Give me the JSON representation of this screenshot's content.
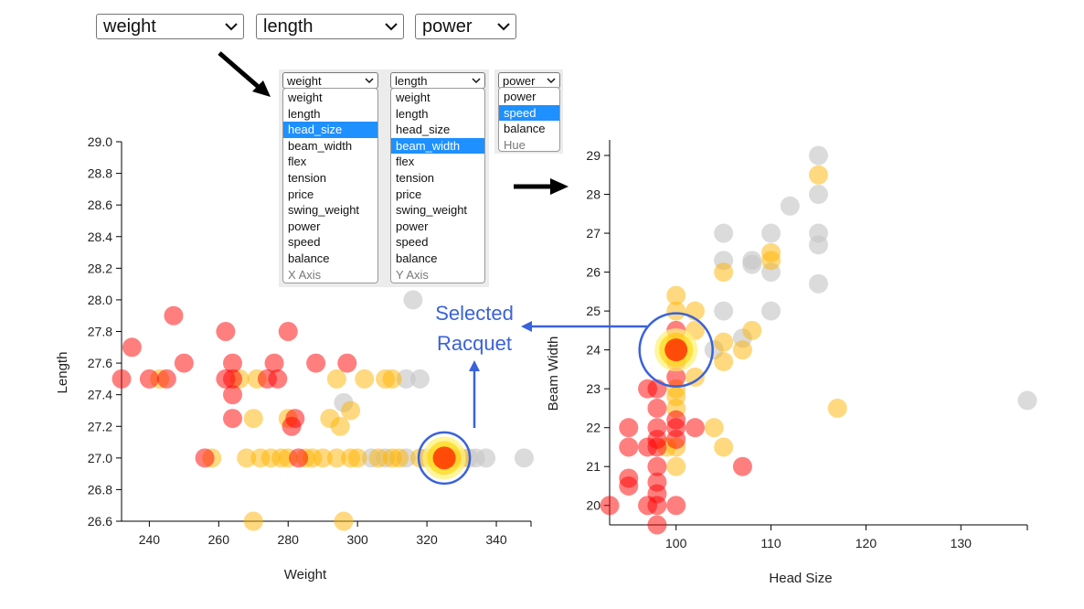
{
  "controls": {
    "x_select": {
      "value": "weight"
    },
    "y_select": {
      "value": "length"
    },
    "color_select": {
      "value": "power"
    }
  },
  "dropdowns": {
    "x": {
      "value": "weight",
      "options": [
        "weight",
        "length",
        "head_size",
        "beam_width",
        "flex",
        "tension",
        "price",
        "swing_weight",
        "power",
        "speed",
        "balance"
      ],
      "highlighted": "head_size",
      "placeholder": "X Axis"
    },
    "y": {
      "value": "length",
      "options": [
        "weight",
        "length",
        "head_size",
        "beam_width",
        "flex",
        "tension",
        "price",
        "swing_weight",
        "power",
        "speed",
        "balance"
      ],
      "highlighted": "beam_width",
      "placeholder": "Y Axis"
    },
    "color": {
      "value": "power",
      "options": [
        "power",
        "speed",
        "balance"
      ],
      "highlighted": "speed",
      "placeholder": "Hue"
    }
  },
  "annotation": {
    "line1": "Selected",
    "line2": "Racquet",
    "color": "#3a62d9"
  },
  "colors": {
    "low": "#c8c8c8",
    "mid": "#ffb300",
    "high": "#ff0000"
  },
  "chart_data": [
    {
      "type": "scatter",
      "xlabel": "Weight",
      "ylabel": "Length",
      "xlim": [
        232,
        350
      ],
      "ylim": [
        26.6,
        29.0
      ],
      "xticks": [
        240,
        260,
        280,
        300,
        320,
        340
      ],
      "yticks": [
        "26.6",
        "26.8",
        "27.0",
        "27.2",
        "27.4",
        "27.6",
        "27.8",
        "28.0",
        "28.2",
        "28.4",
        "28.6",
        "28.8",
        "29.0"
      ],
      "selected": {
        "x": 325,
        "y": 27.0
      },
      "points": [
        {
          "x": 232,
          "y": 27.5,
          "c": "high"
        },
        {
          "x": 235,
          "y": 27.7,
          "c": "high"
        },
        {
          "x": 240,
          "y": 27.5,
          "c": "high"
        },
        {
          "x": 243,
          "y": 27.5,
          "c": "mid"
        },
        {
          "x": 245,
          "y": 27.5,
          "c": "high"
        },
        {
          "x": 247,
          "y": 27.9,
          "c": "high"
        },
        {
          "x": 250,
          "y": 27.6,
          "c": "high"
        },
        {
          "x": 256,
          "y": 27.0,
          "c": "high"
        },
        {
          "x": 258,
          "y": 27.0,
          "c": "mid"
        },
        {
          "x": 262,
          "y": 27.8,
          "c": "high"
        },
        {
          "x": 262,
          "y": 27.5,
          "c": "high"
        },
        {
          "x": 264,
          "y": 27.6,
          "c": "high"
        },
        {
          "x": 264,
          "y": 27.5,
          "c": "high"
        },
        {
          "x": 264,
          "y": 27.4,
          "c": "high"
        },
        {
          "x": 264,
          "y": 27.25,
          "c": "high"
        },
        {
          "x": 266,
          "y": 27.5,
          "c": "mid"
        },
        {
          "x": 268,
          "y": 27.0,
          "c": "mid"
        },
        {
          "x": 270,
          "y": 27.25,
          "c": "mid"
        },
        {
          "x": 270,
          "y": 26.6,
          "c": "mid"
        },
        {
          "x": 271,
          "y": 27.5,
          "c": "mid"
        },
        {
          "x": 272,
          "y": 27.0,
          "c": "mid"
        },
        {
          "x": 274,
          "y": 27.5,
          "c": "high"
        },
        {
          "x": 275,
          "y": 27.0,
          "c": "mid"
        },
        {
          "x": 276,
          "y": 27.6,
          "c": "high"
        },
        {
          "x": 277,
          "y": 27.5,
          "c": "high"
        },
        {
          "x": 278,
          "y": 27.0,
          "c": "mid"
        },
        {
          "x": 280,
          "y": 27.8,
          "c": "high"
        },
        {
          "x": 280,
          "y": 27.25,
          "c": "mid"
        },
        {
          "x": 280,
          "y": 27.0,
          "c": "mid"
        },
        {
          "x": 281,
          "y": 27.2,
          "c": "high"
        },
        {
          "x": 282,
          "y": 27.25,
          "c": "high"
        },
        {
          "x": 283,
          "y": 27.0,
          "c": "high"
        },
        {
          "x": 285,
          "y": 27.0,
          "c": "mid"
        },
        {
          "x": 287,
          "y": 27.0,
          "c": "mid"
        },
        {
          "x": 288,
          "y": 27.6,
          "c": "high"
        },
        {
          "x": 290,
          "y": 27.0,
          "c": "mid"
        },
        {
          "x": 292,
          "y": 27.25,
          "c": "mid"
        },
        {
          "x": 294,
          "y": 27.0,
          "c": "mid"
        },
        {
          "x": 294,
          "y": 27.5,
          "c": "mid"
        },
        {
          "x": 295,
          "y": 27.2,
          "c": "mid"
        },
        {
          "x": 296,
          "y": 26.6,
          "c": "mid"
        },
        {
          "x": 296,
          "y": 27.35,
          "c": "low"
        },
        {
          "x": 297,
          "y": 27.6,
          "c": "high"
        },
        {
          "x": 298,
          "y": 27.0,
          "c": "mid"
        },
        {
          "x": 298,
          "y": 27.3,
          "c": "mid"
        },
        {
          "x": 300,
          "y": 27.0,
          "c": "mid"
        },
        {
          "x": 302,
          "y": 27.5,
          "c": "mid"
        },
        {
          "x": 304,
          "y": 27.0,
          "c": "low"
        },
        {
          "x": 306,
          "y": 27.0,
          "c": "mid"
        },
        {
          "x": 308,
          "y": 27.5,
          "c": "mid"
        },
        {
          "x": 308,
          "y": 27.0,
          "c": "low"
        },
        {
          "x": 310,
          "y": 27.5,
          "c": "mid"
        },
        {
          "x": 310,
          "y": 27.0,
          "c": "mid"
        },
        {
          "x": 312,
          "y": 27.0,
          "c": "mid"
        },
        {
          "x": 314,
          "y": 27.5,
          "c": "low"
        },
        {
          "x": 314,
          "y": 27.0,
          "c": "low"
        },
        {
          "x": 316,
          "y": 28.0,
          "c": "low"
        },
        {
          "x": 318,
          "y": 27.5,
          "c": "low"
        },
        {
          "x": 318,
          "y": 27.0,
          "c": "mid"
        },
        {
          "x": 320,
          "y": 27.0,
          "c": "low"
        },
        {
          "x": 322,
          "y": 27.0,
          "c": "mid"
        },
        {
          "x": 324,
          "y": 27.0,
          "c": "low"
        },
        {
          "x": 325,
          "y": 27.0,
          "c": "high"
        },
        {
          "x": 327,
          "y": 27.0,
          "c": "high"
        },
        {
          "x": 330,
          "y": 27.0,
          "c": "mid"
        },
        {
          "x": 332,
          "y": 27.0,
          "c": "low"
        },
        {
          "x": 334,
          "y": 27.0,
          "c": "low"
        },
        {
          "x": 337,
          "y": 27.0,
          "c": "low"
        },
        {
          "x": 348,
          "y": 27.0,
          "c": "low"
        }
      ]
    },
    {
      "type": "scatter",
      "xlabel": "Head Size",
      "ylabel": "Beam Width",
      "xlim": [
        93,
        137
      ],
      "ylim": [
        19.5,
        29.4
      ],
      "xticks": [
        100,
        110,
        120,
        130
      ],
      "yticks": [
        20,
        21,
        22,
        23,
        24,
        25,
        26,
        27,
        28,
        29
      ],
      "selected": {
        "x": 100,
        "y": 24
      },
      "points": [
        {
          "x": 93,
          "y": 20.0,
          "c": "high"
        },
        {
          "x": 95,
          "y": 22.0,
          "c": "high"
        },
        {
          "x": 95,
          "y": 21.5,
          "c": "high"
        },
        {
          "x": 95,
          "y": 20.7,
          "c": "high"
        },
        {
          "x": 95,
          "y": 20.5,
          "c": "high"
        },
        {
          "x": 97,
          "y": 23.0,
          "c": "high"
        },
        {
          "x": 97,
          "y": 21.5,
          "c": "high"
        },
        {
          "x": 97,
          "y": 20.0,
          "c": "high"
        },
        {
          "x": 98,
          "y": 23.0,
          "c": "high"
        },
        {
          "x": 98,
          "y": 22.5,
          "c": "high"
        },
        {
          "x": 98,
          "y": 22.0,
          "c": "high"
        },
        {
          "x": 98,
          "y": 21.7,
          "c": "high"
        },
        {
          "x": 98,
          "y": 21.5,
          "c": "high"
        },
        {
          "x": 98,
          "y": 21.0,
          "c": "high"
        },
        {
          "x": 98,
          "y": 20.6,
          "c": "high"
        },
        {
          "x": 98,
          "y": 20.3,
          "c": "high"
        },
        {
          "x": 98,
          "y": 20.0,
          "c": "high"
        },
        {
          "x": 98,
          "y": 19.5,
          "c": "high"
        },
        {
          "x": 99,
          "y": 21.5,
          "c": "mid"
        },
        {
          "x": 100,
          "y": 25.0,
          "c": "mid"
        },
        {
          "x": 100,
          "y": 24.5,
          "c": "high"
        },
        {
          "x": 100,
          "y": 24.2,
          "c": "high"
        },
        {
          "x": 100,
          "y": 24.0,
          "c": "high"
        },
        {
          "x": 100,
          "y": 23.7,
          "c": "high"
        },
        {
          "x": 100,
          "y": 23.3,
          "c": "high"
        },
        {
          "x": 100,
          "y": 23.0,
          "c": "mid"
        },
        {
          "x": 100,
          "y": 22.8,
          "c": "mid"
        },
        {
          "x": 100,
          "y": 22.5,
          "c": "mid"
        },
        {
          "x": 100,
          "y": 22.2,
          "c": "high"
        },
        {
          "x": 100,
          "y": 22.0,
          "c": "high"
        },
        {
          "x": 100,
          "y": 21.7,
          "c": "high"
        },
        {
          "x": 100,
          "y": 21.5,
          "c": "mid"
        },
        {
          "x": 100,
          "y": 21.0,
          "c": "mid"
        },
        {
          "x": 100,
          "y": 20.0,
          "c": "high"
        },
        {
          "x": 100,
          "y": 25.4,
          "c": "mid"
        },
        {
          "x": 102,
          "y": 25.0,
          "c": "mid"
        },
        {
          "x": 102,
          "y": 24.5,
          "c": "mid"
        },
        {
          "x": 102,
          "y": 23.3,
          "c": "mid"
        },
        {
          "x": 102,
          "y": 22.0,
          "c": "high"
        },
        {
          "x": 104,
          "y": 24.0,
          "c": "low"
        },
        {
          "x": 104,
          "y": 22.0,
          "c": "mid"
        },
        {
          "x": 105,
          "y": 27.0,
          "c": "low"
        },
        {
          "x": 105,
          "y": 26.3,
          "c": "low"
        },
        {
          "x": 105,
          "y": 26.0,
          "c": "mid"
        },
        {
          "x": 105,
          "y": 25.0,
          "c": "low"
        },
        {
          "x": 105,
          "y": 24.2,
          "c": "mid"
        },
        {
          "x": 105,
          "y": 23.7,
          "c": "mid"
        },
        {
          "x": 105,
          "y": 21.5,
          "c": "mid"
        },
        {
          "x": 107,
          "y": 24.3,
          "c": "low"
        },
        {
          "x": 107,
          "y": 24.0,
          "c": "mid"
        },
        {
          "x": 107,
          "y": 21.0,
          "c": "high"
        },
        {
          "x": 108,
          "y": 26.3,
          "c": "low"
        },
        {
          "x": 108,
          "y": 26.2,
          "c": "low"
        },
        {
          "x": 108,
          "y": 24.5,
          "c": "mid"
        },
        {
          "x": 110,
          "y": 27.0,
          "c": "low"
        },
        {
          "x": 110,
          "y": 26.5,
          "c": "mid"
        },
        {
          "x": 110,
          "y": 26.3,
          "c": "mid"
        },
        {
          "x": 110,
          "y": 26.0,
          "c": "low"
        },
        {
          "x": 110,
          "y": 25.0,
          "c": "low"
        },
        {
          "x": 112,
          "y": 27.7,
          "c": "low"
        },
        {
          "x": 115,
          "y": 29.0,
          "c": "low"
        },
        {
          "x": 115,
          "y": 28.5,
          "c": "mid"
        },
        {
          "x": 115,
          "y": 28.0,
          "c": "low"
        },
        {
          "x": 115,
          "y": 27.0,
          "c": "low"
        },
        {
          "x": 115,
          "y": 26.7,
          "c": "low"
        },
        {
          "x": 115,
          "y": 25.7,
          "c": "low"
        },
        {
          "x": 117,
          "y": 22.5,
          "c": "mid"
        },
        {
          "x": 137,
          "y": 22.7,
          "c": "low"
        }
      ]
    }
  ]
}
